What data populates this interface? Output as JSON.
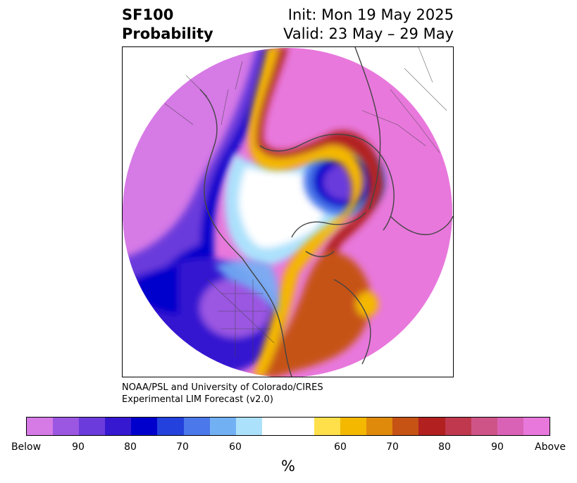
{
  "title": {
    "left_line1": "SF100",
    "left_line2": "Probability",
    "right_line1": "Init: Mon 19 May 2025",
    "right_line2": "Valid: 23 May – 29 May"
  },
  "credit": {
    "line1": "NOAA/PSL and University of Colorado/CIRES",
    "line2": "Experimental LIM Forecast (v2.0)"
  },
  "colorbar": {
    "colors": [
      "#d67ae6",
      "#9b56e2",
      "#6b3bdc",
      "#3518d0",
      "#0000cc",
      "#2341dc",
      "#4b78ea",
      "#72b0f4",
      "#ace1fc",
      "#ffffff",
      "#ffffff",
      "#ffe04b",
      "#f4b800",
      "#e08a0c",
      "#c65214",
      "#b22020",
      "#c0384e",
      "#ce5488",
      "#da62b6",
      "#e878dc"
    ],
    "tick_labels": [
      "Below",
      "90",
      "80",
      "70",
      "60",
      "60",
      "70",
      "80",
      "90",
      "Above"
    ],
    "unit_label": "%"
  },
  "map": {
    "ocean_outside": "#ffffff",
    "coastline_color": "#444444"
  }
}
